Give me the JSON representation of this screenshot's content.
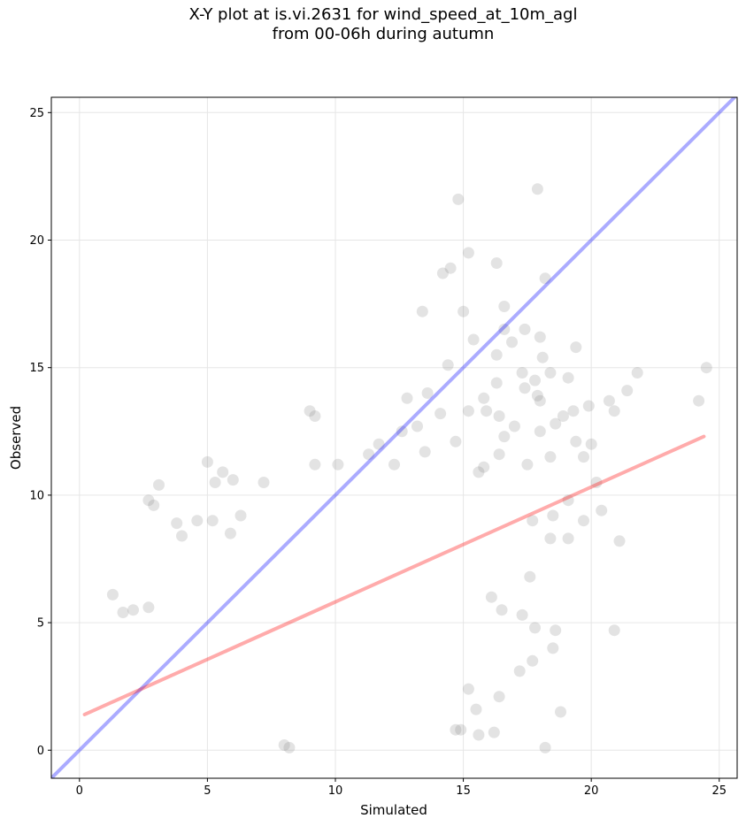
{
  "chart_data": {
    "type": "scatter",
    "title_line1": "X-Y plot at is.vi.2631 for wind_speed_at_10m_agl",
    "title_line2": "from 00-06h during autumn",
    "xlabel": "Simulated",
    "ylabel": "Observed",
    "xlim": [
      -1.1,
      25.7
    ],
    "ylim": [
      -1.1,
      25.6
    ],
    "xticks": [
      0,
      5,
      10,
      15,
      20,
      25
    ],
    "yticks": [
      0,
      5,
      10,
      15,
      20,
      25
    ],
    "grid": true,
    "point_color": "#808080",
    "identity_line": {
      "from": [
        -1.1,
        -1.1
      ],
      "to": [
        25.7,
        25.7
      ],
      "color": "#0000ff"
    },
    "regression_line": {
      "from": [
        0.2,
        1.4
      ],
      "to": [
        24.4,
        12.3
      ],
      "color": "#ff0000"
    },
    "points": [
      [
        17.9,
        22.0
      ],
      [
        14.8,
        21.6
      ],
      [
        15.2,
        19.5
      ],
      [
        16.3,
        19.1
      ],
      [
        14.5,
        18.9
      ],
      [
        14.2,
        18.7
      ],
      [
        18.2,
        18.5
      ],
      [
        16.6,
        17.4
      ],
      [
        13.4,
        17.2
      ],
      [
        15.0,
        17.2
      ],
      [
        16.6,
        16.5
      ],
      [
        17.4,
        16.5
      ],
      [
        15.4,
        16.1
      ],
      [
        18.0,
        16.2
      ],
      [
        16.9,
        16.0
      ],
      [
        19.4,
        15.8
      ],
      [
        18.1,
        15.4
      ],
      [
        16.3,
        15.5
      ],
      [
        14.4,
        15.1
      ],
      [
        17.3,
        14.8
      ],
      [
        18.4,
        14.8
      ],
      [
        24.5,
        15.0
      ],
      [
        21.8,
        14.8
      ],
      [
        19.1,
        14.6
      ],
      [
        17.8,
        14.5
      ],
      [
        16.3,
        14.4
      ],
      [
        17.4,
        14.2
      ],
      [
        21.4,
        14.1
      ],
      [
        13.6,
        14.0
      ],
      [
        17.9,
        13.9
      ],
      [
        18.0,
        13.7
      ],
      [
        20.7,
        13.7
      ],
      [
        24.2,
        13.7
      ],
      [
        15.8,
        13.8
      ],
      [
        12.8,
        13.8
      ],
      [
        15.9,
        13.3
      ],
      [
        14.1,
        13.2
      ],
      [
        15.2,
        13.3
      ],
      [
        19.3,
        13.3
      ],
      [
        9.0,
        13.3
      ],
      [
        9.2,
        13.1
      ],
      [
        16.4,
        13.1
      ],
      [
        19.9,
        13.5
      ],
      [
        20.9,
        13.3
      ],
      [
        18.9,
        13.1
      ],
      [
        18.6,
        12.8
      ],
      [
        17.0,
        12.7
      ],
      [
        13.2,
        12.7
      ],
      [
        12.6,
        12.5
      ],
      [
        18.0,
        12.5
      ],
      [
        16.6,
        12.3
      ],
      [
        14.7,
        12.1
      ],
      [
        19.4,
        12.1
      ],
      [
        20.0,
        12.0
      ],
      [
        11.7,
        12.0
      ],
      [
        11.3,
        11.6
      ],
      [
        13.5,
        11.7
      ],
      [
        16.4,
        11.6
      ],
      [
        18.4,
        11.5
      ],
      [
        19.7,
        11.5
      ],
      [
        15.8,
        11.1
      ],
      [
        17.5,
        11.2
      ],
      [
        12.3,
        11.2
      ],
      [
        9.2,
        11.2
      ],
      [
        10.1,
        11.2
      ],
      [
        5.0,
        11.3
      ],
      [
        5.6,
        10.9
      ],
      [
        6.0,
        10.6
      ],
      [
        5.3,
        10.5
      ],
      [
        7.2,
        10.5
      ],
      [
        3.1,
        10.4
      ],
      [
        15.6,
        10.9
      ],
      [
        20.2,
        10.5
      ],
      [
        21.1,
        8.2
      ],
      [
        20.4,
        9.4
      ],
      [
        19.1,
        9.8
      ],
      [
        18.5,
        9.2
      ],
      [
        19.7,
        9.0
      ],
      [
        19.1,
        8.3
      ],
      [
        18.4,
        8.3
      ],
      [
        17.7,
        9.0
      ],
      [
        2.7,
        9.8
      ],
      [
        2.9,
        9.6
      ],
      [
        3.8,
        8.9
      ],
      [
        4.6,
        9.0
      ],
      [
        5.2,
        9.0
      ],
      [
        6.3,
        9.2
      ],
      [
        4.0,
        8.4
      ],
      [
        5.9,
        8.5
      ],
      [
        17.6,
        6.8
      ],
      [
        16.1,
        6.0
      ],
      [
        16.5,
        5.5
      ],
      [
        17.3,
        5.3
      ],
      [
        17.8,
        4.8
      ],
      [
        18.6,
        4.7
      ],
      [
        20.9,
        4.7
      ],
      [
        18.5,
        4.0
      ],
      [
        17.7,
        3.5
      ],
      [
        17.2,
        3.1
      ],
      [
        16.4,
        2.1
      ],
      [
        16.2,
        0.7
      ],
      [
        15.2,
        2.4
      ],
      [
        15.5,
        1.6
      ],
      [
        18.8,
        1.5
      ],
      [
        18.2,
        0.1
      ],
      [
        15.6,
        0.6
      ],
      [
        14.9,
        0.8
      ],
      [
        14.7,
        0.8
      ],
      [
        8.0,
        0.2
      ],
      [
        8.2,
        0.1
      ],
      [
        1.3,
        6.1
      ],
      [
        2.1,
        5.5
      ],
      [
        1.7,
        5.4
      ],
      [
        2.7,
        5.6
      ]
    ]
  }
}
